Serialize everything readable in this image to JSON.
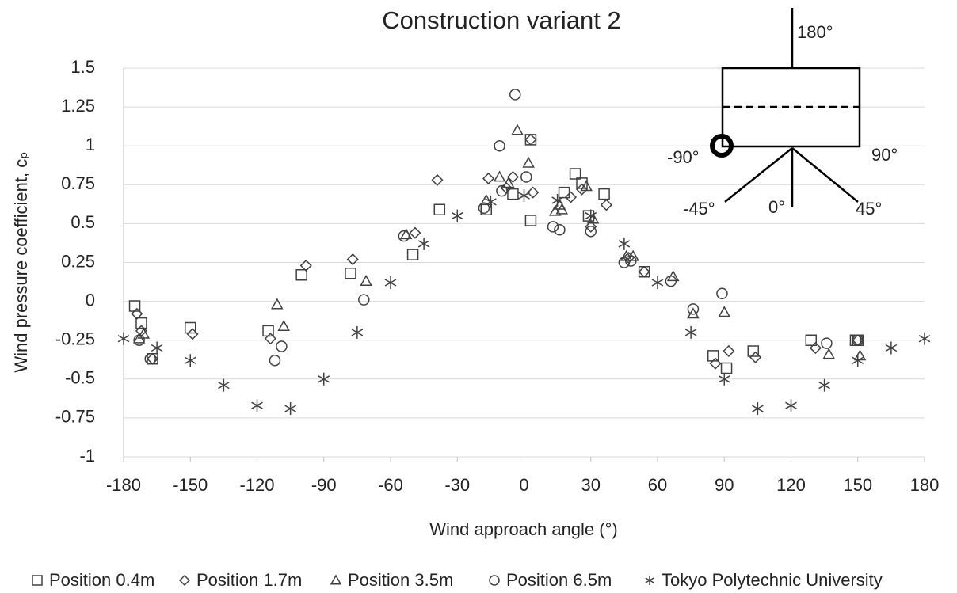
{
  "chart_data": {
    "type": "scatter",
    "title": "Construction variant 2",
    "x_label": "Wind approach angle (°)",
    "y_label": "Wind pressure coefficient, cₚ",
    "xlim": [
      -180,
      180
    ],
    "ylim": [
      -1,
      1.5
    ],
    "xticks": [
      -180,
      -150,
      -120,
      -90,
      -60,
      -30,
      0,
      30,
      60,
      90,
      120,
      150,
      180
    ],
    "yticks": [
      -1,
      -0.75,
      -0.5,
      -0.25,
      0,
      0.25,
      0.5,
      0.75,
      1,
      1.25,
      1.5
    ],
    "grid": true,
    "legend": "bottom",
    "annotations": [
      "180°",
      "-90°",
      "90°",
      "-45°",
      "0°",
      "45°"
    ],
    "series": [
      {
        "name": "Position 0.4m",
        "marker": "square",
        "color": "#404040",
        "x": [
          -175,
          -172,
          -167,
          -150,
          -115,
          -100,
          -78,
          -50,
          -38,
          -17,
          -5,
          3,
          3,
          23,
          26,
          18,
          29,
          36,
          54,
          85,
          91,
          103,
          129,
          149,
          150
        ],
        "values": [
          -0.03,
          -0.14,
          -0.37,
          -0.17,
          -0.19,
          0.17,
          0.18,
          0.3,
          0.59,
          0.59,
          0.69,
          1.04,
          0.52,
          0.82,
          0.76,
          0.7,
          0.55,
          0.69,
          0.19,
          -0.35,
          -0.43,
          -0.32,
          -0.25,
          -0.25,
          -0.25
        ]
      },
      {
        "name": "Position 1.7m",
        "marker": "diamond",
        "color": "#404040",
        "x": [
          -174,
          -172,
          -167,
          -149,
          -114,
          -98,
          -77,
          -49,
          -39,
          -16,
          -8,
          -5,
          4,
          3,
          21,
          26,
          30,
          37,
          47,
          54,
          86,
          92,
          104,
          131,
          150
        ],
        "values": [
          -0.08,
          -0.19,
          -0.37,
          -0.21,
          -0.24,
          0.23,
          0.27,
          0.44,
          0.78,
          0.79,
          0.73,
          0.8,
          0.7,
          1.04,
          0.67,
          0.72,
          0.48,
          0.62,
          0.28,
          0.19,
          -0.4,
          -0.32,
          -0.36,
          -0.3,
          -0.25
        ]
      },
      {
        "name": "Position 3.5m",
        "marker": "triangle",
        "color": "#404040",
        "x": [
          -173,
          -171,
          -111,
          -108,
          -71,
          -53,
          -17,
          -11,
          -7,
          -3,
          2,
          14,
          17,
          16,
          28,
          31,
          46,
          49,
          67,
          76,
          90,
          137,
          151
        ],
        "values": [
          -0.24,
          -0.21,
          -0.02,
          -0.16,
          0.13,
          0.43,
          0.65,
          0.8,
          0.76,
          1.1,
          0.89,
          0.58,
          0.59,
          0.62,
          0.74,
          0.53,
          0.29,
          0.29,
          0.16,
          -0.08,
          -0.07,
          -0.34,
          -0.35
        ]
      },
      {
        "name": "Position 6.5m",
        "marker": "circle",
        "color": "#404040",
        "x": [
          -173,
          -168,
          -112,
          -109,
          -72,
          -54,
          -18,
          -10,
          -4,
          -11,
          1,
          13,
          16,
          30,
          45,
          48,
          66,
          76,
          89,
          136,
          150
        ],
        "values": [
          -0.25,
          -0.37,
          -0.38,
          -0.29,
          0.01,
          0.42,
          0.6,
          0.71,
          1.33,
          1.0,
          0.8,
          0.48,
          0.46,
          0.45,
          0.25,
          0.26,
          0.13,
          -0.05,
          0.05,
          -0.27,
          -0.25
        ]
      },
      {
        "name": "Tokyo Polytechnic University",
        "marker": "star",
        "color": "#404040",
        "x": [
          -180,
          -165,
          -150,
          -135,
          -120,
          -105,
          -90,
          -75,
          -60,
          -45,
          -30,
          -15,
          0,
          15,
          30,
          45,
          60,
          75,
          90,
          105,
          120,
          135,
          150,
          165,
          180
        ],
        "values": [
          -0.24,
          -0.3,
          -0.38,
          -0.54,
          -0.67,
          -0.69,
          -0.5,
          -0.2,
          0.12,
          0.37,
          0.55,
          0.64,
          0.68,
          0.65,
          0.55,
          0.37,
          0.12,
          -0.2,
          -0.5,
          -0.69,
          -0.67,
          -0.54,
          -0.38,
          -0.3,
          -0.24
        ]
      }
    ]
  }
}
